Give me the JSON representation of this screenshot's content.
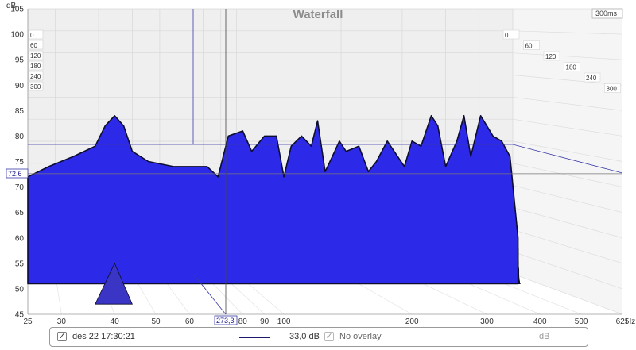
{
  "chart_data": {
    "type": "waterfall",
    "title": "Waterfall",
    "yunit": "dB",
    "xunit": "Hz",
    "ylim": [
      45,
      105
    ],
    "xlim": [
      25,
      625
    ],
    "x_scale": "log",
    "yticks": [
      "105",
      "100",
      "95",
      "90",
      "85",
      "80",
      "75",
      "70",
      "65",
      "60",
      "55",
      "50",
      "45"
    ],
    "xticks": [
      "25",
      "30",
      "40",
      "50",
      "60",
      "80",
      "90",
      "100",
      "200",
      "300",
      "400",
      "500",
      "625"
    ],
    "time_axis_label": "300ms",
    "time_slices_ms": [
      "0",
      "60",
      "120",
      "180",
      "240",
      "300"
    ],
    "cursor": {
      "y_value": "72,6",
      "x_value": "273,3"
    },
    "front_slice": {
      "freq_hz": [
        25,
        28,
        32,
        36,
        38,
        40,
        42,
        44,
        48,
        55,
        60,
        66,
        70,
        74,
        80,
        84,
        90,
        96,
        100,
        104,
        110,
        116,
        120,
        125,
        130,
        135,
        140,
        150,
        158,
        165,
        175,
        185,
        192,
        200,
        210,
        222,
        230,
        240,
        255,
        265,
        275,
        290,
        300,
        310,
        325,
        340,
        355
      ],
      "level_db": [
        72,
        74,
        76,
        78,
        82,
        84,
        82,
        77,
        75,
        74,
        74,
        74,
        72,
        80,
        81,
        77,
        80,
        80,
        72,
        78,
        80,
        78,
        83,
        73,
        76,
        79,
        77,
        78,
        73,
        75,
        79,
        76,
        74,
        79,
        78,
        84,
        82,
        74,
        79,
        84,
        76,
        84,
        82,
        80,
        79,
        76,
        60
      ]
    },
    "series": [
      {
        "name": "des 22 17:30:21",
        "color": "#3a35c4",
        "smoothing": "33,0 dB"
      }
    ]
  },
  "legend": {
    "checked_mark": "✓",
    "measurement_name": "des 22 17:30:21",
    "level": "33,0 dB",
    "overlay_label": "No overlay",
    "overlay_unit": "dB"
  }
}
